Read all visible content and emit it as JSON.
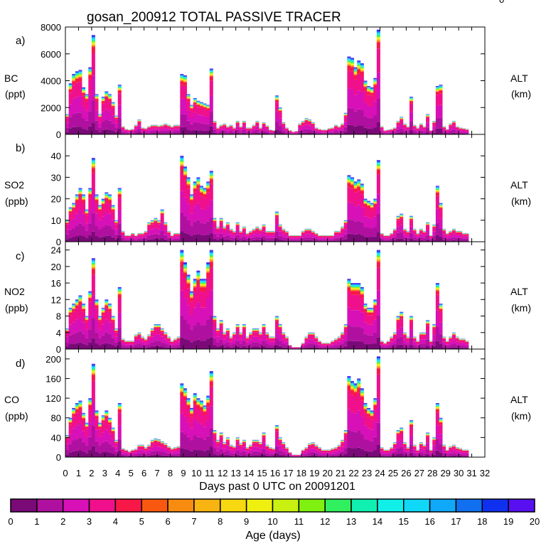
{
  "title": "gosan_200912 TOTAL PASSIVE TRACER",
  "corner_mark": "0",
  "x_axis": {
    "label": "Days past 0 UTC on 20091201",
    "ticks": [
      "0",
      "1",
      "2",
      "3",
      "4",
      "5",
      "6",
      "7",
      "8",
      "9",
      "10",
      "11",
      "12",
      "13",
      "14",
      "15",
      "16",
      "17",
      "18",
      "19",
      "20",
      "21",
      "22",
      "23",
      "24",
      "25",
      "26",
      "27",
      "28",
      "29",
      "30",
      "31",
      "32"
    ],
    "range": [
      0,
      32
    ],
    "data_extent": [
      0,
      31.5
    ]
  },
  "colorbar": {
    "label": "Age (days)",
    "ticks": [
      "0",
      "1",
      "2",
      "3",
      "4",
      "5",
      "6",
      "7",
      "8",
      "9",
      "10",
      "11",
      "12",
      "13",
      "14",
      "15",
      "16",
      "17",
      "18",
      "19",
      "20"
    ],
    "colors": [
      "#7a0a78",
      "#b010a0",
      "#d810b8",
      "#f0108c",
      "#f81848",
      "#f85810",
      "#f88c10",
      "#f8b410",
      "#f8d810",
      "#f0f010",
      "#c8f010",
      "#80f010",
      "#30f060",
      "#10f0b0",
      "#10f0e8",
      "#10d8f8",
      "#10a8f8",
      "#1070f0",
      "#1030f0",
      "#5810f0"
    ]
  },
  "panels": [
    {
      "letter": "a)",
      "species": "BC",
      "unit": "(ppt)",
      "right_label": "ALT",
      "right_unit": "(km)",
      "yticks": [
        "0",
        "2000",
        "4000",
        "6000",
        "8000"
      ],
      "ylim": [
        0,
        8000
      ]
    },
    {
      "letter": "b)",
      "species": "SO2",
      "unit": "(ppb)",
      "right_label": "ALT",
      "right_unit": "(km)",
      "yticks": [
        "0",
        "10",
        "20",
        "30",
        "40"
      ],
      "ylim": [
        0,
        50
      ]
    },
    {
      "letter": "c)",
      "species": "NO2",
      "unit": "(ppb)",
      "right_label": "ALT",
      "right_unit": "(km)",
      "yticks": [
        "0",
        "4",
        "8",
        "12",
        "16",
        "20",
        "24"
      ],
      "ylim": [
        0,
        26
      ]
    },
    {
      "letter": "d)",
      "species": "CO",
      "unit": "(ppb)",
      "right_label": "ALT",
      "right_unit": "(km)",
      "yticks": [
        "0",
        "40",
        "80",
        "120",
        "160",
        "200"
      ],
      "ylim": [
        0,
        220
      ]
    }
  ],
  "chart_data": [
    {
      "type": "area",
      "title": "a) BC (ppt)",
      "xlabel": "Days past 0 UTC on 20091201",
      "ylabel": "BC (ppt)",
      "ylim": [
        0,
        8000
      ],
      "x": [
        0,
        0.25,
        0.5,
        0.75,
        1,
        1.25,
        1.5,
        1.75,
        2,
        2.25,
        2.5,
        2.75,
        3,
        3.25,
        3.5,
        3.75,
        4,
        4.25,
        4.5,
        4.75,
        5,
        5.25,
        5.5,
        5.75,
        6,
        6.25,
        6.5,
        6.75,
        7,
        7.25,
        7.5,
        7.75,
        8,
        8.25,
        8.5,
        8.75,
        9,
        9.25,
        9.5,
        9.75,
        10,
        10.25,
        10.5,
        10.75,
        11,
        11.25,
        11.5,
        11.75,
        12,
        12.25,
        12.5,
        12.75,
        13,
        13.25,
        13.5,
        13.75,
        14,
        14.25,
        14.5,
        14.75,
        15,
        15.25,
        15.5,
        15.75,
        16,
        16.25,
        16.5,
        16.75,
        17,
        17.25,
        17.5,
        17.75,
        18,
        18.25,
        18.5,
        18.75,
        19,
        19.25,
        19.5,
        19.75,
        20,
        20.25,
        20.5,
        20.75,
        21,
        21.25,
        21.5,
        21.75,
        22,
        22.25,
        22.5,
        22.75,
        23,
        23.25,
        23.5,
        23.75,
        24,
        24.25,
        24.5,
        24.75,
        25,
        25.25,
        25.5,
        25.75,
        26,
        26.25,
        26.5,
        26.75,
        27,
        27.25,
        27.5,
        27.75,
        28,
        28.25,
        28.5,
        28.75,
        29,
        29.25,
        29.5,
        29.75,
        30,
        30.25,
        30.5,
        30.75,
        31,
        31.25,
        31.5
      ],
      "total": [
        1500,
        3800,
        4500,
        4700,
        4800,
        3500,
        3000,
        5000,
        7400,
        3000,
        1500,
        2800,
        3200,
        3000,
        2400,
        1400,
        3700,
        600,
        400,
        350,
        400,
        700,
        1100,
        500,
        450,
        600,
        700,
        700,
        650,
        700,
        800,
        700,
        600,
        700,
        700,
        4500,
        4400,
        3000,
        2200,
        2700,
        2500,
        2400,
        2300,
        2200,
        4900,
        1000,
        500,
        700,
        800,
        600,
        700,
        500,
        1000,
        600,
        1000,
        500,
        500,
        700,
        1000,
        500,
        900,
        650,
        350,
        300,
        2900,
        2000,
        900,
        500,
        300,
        200,
        250,
        800,
        1000,
        1200,
        1100,
        900,
        500,
        400,
        350,
        350,
        450,
        500,
        700,
        600,
        800,
        1600,
        5800,
        5700,
        5000,
        5500,
        5300,
        4000,
        3600,
        3500,
        4200,
        7800,
        600,
        300,
        350,
        400,
        500,
        1000,
        1300,
        800,
        600,
        2800,
        700,
        500,
        800,
        600,
        1500,
        300,
        1000,
        3600,
        3700,
        600,
        400,
        800,
        1000,
        600,
        500,
        450,
        400
      ],
      "aged_fraction_top": 0.15
    },
    {
      "type": "area",
      "title": "b) SO2 (ppb)",
      "xlabel": "Days past 0 UTC on 20091201",
      "ylabel": "SO2 (ppb)",
      "ylim": [
        0,
        50
      ],
      "x": [
        0,
        0.25,
        0.5,
        0.75,
        1,
        1.25,
        1.5,
        1.75,
        2,
        2.25,
        2.5,
        2.75,
        3,
        3.25,
        3.5,
        3.75,
        4,
        4.25,
        4.5,
        4.75,
        5,
        5.25,
        5.5,
        5.75,
        6,
        6.25,
        6.5,
        6.75,
        7,
        7.25,
        7.5,
        7.75,
        8,
        8.25,
        8.5,
        8.75,
        9,
        9.25,
        9.5,
        9.75,
        10,
        10.25,
        10.5,
        10.75,
        11,
        11.25,
        11.5,
        11.75,
        12,
        12.25,
        12.5,
        12.75,
        13,
        13.25,
        13.5,
        13.75,
        14,
        14.25,
        14.5,
        14.75,
        15,
        15.25,
        15.5,
        15.75,
        16,
        16.25,
        16.5,
        16.75,
        17,
        17.25,
        17.5,
        17.75,
        18,
        18.25,
        18.5,
        18.75,
        19,
        19.25,
        19.5,
        19.75,
        20,
        20.25,
        20.5,
        20.75,
        21,
        21.25,
        21.5,
        21.75,
        22,
        22.25,
        22.5,
        22.75,
        23,
        23.25,
        23.5,
        23.75,
        24,
        24.25,
        24.5,
        24.75,
        25,
        25.25,
        25.5,
        25.75,
        26,
        26.25,
        26.5,
        26.75,
        27,
        27.25,
        27.5,
        27.75,
        28,
        28.25,
        28.5,
        28.75,
        29,
        29.25,
        29.5,
        29.75,
        30,
        30.25,
        30.5,
        30.75,
        31,
        31.25,
        31.5
      ],
      "total": [
        10,
        16,
        18,
        22,
        25,
        22,
        15,
        25,
        39,
        22,
        17,
        20,
        23,
        22,
        17,
        10,
        25,
        5,
        3,
        3,
        4,
        3,
        4,
        4,
        5,
        9,
        10,
        11,
        10,
        15,
        9,
        5,
        3,
        4,
        4,
        40,
        35,
        30,
        22,
        28,
        30,
        26,
        25,
        28,
        33,
        11,
        7,
        11,
        7,
        9,
        6,
        5,
        9,
        5,
        7,
        4,
        5,
        6,
        7,
        6,
        8,
        5,
        5,
        5,
        14,
        8,
        6,
        5,
        3,
        3,
        3,
        3,
        5,
        6,
        6,
        5,
        4,
        3,
        3,
        3,
        3,
        3,
        5,
        5,
        7,
        10,
        31,
        30,
        28,
        29,
        27,
        20,
        19,
        18,
        20,
        38,
        4,
        3,
        3,
        4,
        6,
        12,
        13,
        6,
        5,
        12,
        6,
        4,
        6,
        5,
        9,
        3,
        8,
        26,
        18,
        6,
        4,
        5,
        6,
        5,
        5,
        4,
        4
      ],
      "aged_fraction_top": 0.2
    },
    {
      "type": "area",
      "title": "c) NO2 (ppb)",
      "xlabel": "Days past 0 UTC on 20091201",
      "ylabel": "NO2 (ppb)",
      "ylim": [
        0,
        26
      ],
      "x": [
        0,
        0.25,
        0.5,
        0.75,
        1,
        1.25,
        1.5,
        1.75,
        2,
        2.25,
        2.5,
        2.75,
        3,
        3.25,
        3.5,
        3.75,
        4,
        4.25,
        4.5,
        4.75,
        5,
        5.25,
        5.5,
        5.75,
        6,
        6.25,
        6.5,
        6.75,
        7,
        7.25,
        7.5,
        7.75,
        8,
        8.25,
        8.5,
        8.75,
        9,
        9.25,
        9.5,
        9.75,
        10,
        10.25,
        10.5,
        10.75,
        11,
        11.25,
        11.5,
        11.75,
        12,
        12.25,
        12.5,
        12.75,
        13,
        13.25,
        13.5,
        13.75,
        14,
        14.25,
        14.5,
        14.75,
        15,
        15.25,
        15.5,
        15.75,
        16,
        16.25,
        16.5,
        16.75,
        17,
        17.25,
        17.5,
        17.75,
        18,
        18.25,
        18.5,
        18.75,
        19,
        19.25,
        19.5,
        19.75,
        20,
        20.25,
        20.5,
        20.75,
        21,
        21.25,
        21.5,
        21.75,
        22,
        22.25,
        22.5,
        22.75,
        23,
        23.25,
        23.5,
        23.75,
        24,
        24.25,
        24.5,
        24.75,
        25,
        25.25,
        25.5,
        25.75,
        26,
        26.25,
        26.5,
        26.75,
        27,
        27.25,
        27.5,
        27.75,
        28,
        28.25,
        28.5,
        28.75,
        29,
        29.25,
        29.5,
        29.75,
        30,
        30.25,
        30.5,
        30.75,
        31,
        31.25,
        31.5
      ],
      "total": [
        5,
        10,
        11,
        12,
        13,
        11,
        8,
        14,
        22,
        12,
        8,
        10,
        12,
        11,
        8,
        5,
        15,
        2.5,
        2,
        2,
        2,
        3.5,
        4,
        3,
        2.5,
        3.5,
        5,
        6,
        6,
        5,
        4,
        3,
        2,
        2.5,
        3,
        24,
        21,
        18,
        14,
        17,
        19,
        17,
        17,
        21,
        24,
        8,
        5,
        7,
        4,
        5,
        3,
        4,
        6,
        4,
        6,
        3,
        4,
        5,
        5,
        4,
        6,
        4,
        3,
        3,
        8,
        6,
        4,
        3,
        1,
        0.5,
        0.5,
        0.5,
        1.5,
        3,
        4,
        4,
        3,
        2,
        1.5,
        1.5,
        1.5,
        2,
        2.5,
        3,
        4,
        6,
        17,
        16,
        16,
        16,
        15,
        11,
        10,
        10,
        12,
        24,
        2,
        1.5,
        2,
        3,
        4,
        8,
        9,
        4,
        3,
        8,
        3,
        2,
        4,
        4,
        7,
        2,
        6,
        16,
        11,
        3,
        2,
        3,
        4,
        3,
        2.5,
        2.5,
        2
      ],
      "aged_fraction_top": 0.25
    },
    {
      "type": "area",
      "title": "d) CO (ppb)",
      "xlabel": "Days past 0 UTC on 20091201",
      "ylabel": "CO (ppb)",
      "ylim": [
        0,
        220
      ],
      "x": [
        0,
        0.25,
        0.5,
        0.75,
        1,
        1.25,
        1.5,
        1.75,
        2,
        2.25,
        2.5,
        2.75,
        3,
        3.25,
        3.5,
        3.75,
        4,
        4.25,
        4.5,
        4.75,
        5,
        5.25,
        5.5,
        5.75,
        6,
        6.25,
        6.5,
        6.75,
        7,
        7.25,
        7.5,
        7.75,
        8,
        8.25,
        8.5,
        8.75,
        9,
        9.25,
        9.5,
        9.75,
        10,
        10.25,
        10.5,
        10.75,
        11,
        11.25,
        11.5,
        11.75,
        12,
        12.25,
        12.5,
        12.75,
        13,
        13.25,
        13.5,
        13.75,
        14,
        14.25,
        14.5,
        14.75,
        15,
        15.25,
        15.5,
        15.75,
        16,
        16.25,
        16.5,
        16.75,
        17,
        17.25,
        17.5,
        17.75,
        18,
        18.25,
        18.5,
        18.75,
        19,
        19.25,
        19.5,
        19.75,
        20,
        20.25,
        20.5,
        20.75,
        21,
        21.25,
        21.5,
        21.75,
        22,
        22.25,
        22.5,
        22.75,
        23,
        23.25,
        23.5,
        23.75,
        24,
        24.25,
        24.5,
        24.75,
        25,
        25.25,
        25.5,
        25.75,
        26,
        26.25,
        26.5,
        26.75,
        27,
        27.25,
        27.5,
        27.75,
        28,
        28.25,
        28.5,
        28.75,
        29,
        29.25,
        29.5,
        29.75,
        30,
        30.25,
        30.5,
        30.75,
        31,
        31.25,
        31.5
      ],
      "total": [
        45,
        80,
        100,
        110,
        115,
        90,
        70,
        120,
        190,
        95,
        70,
        85,
        95,
        80,
        60,
        35,
        110,
        18,
        15,
        12,
        15,
        17,
        25,
        25,
        20,
        25,
        35,
        38,
        36,
        32,
        28,
        22,
        18,
        20,
        22,
        150,
        140,
        120,
        100,
        130,
        120,
        115,
        105,
        125,
        175,
        55,
        35,
        50,
        30,
        40,
        25,
        22,
        40,
        28,
        35,
        20,
        25,
        35,
        35,
        30,
        50,
        25,
        20,
        18,
        65,
        40,
        30,
        20,
        10,
        5,
        5,
        5,
        15,
        20,
        28,
        30,
        25,
        20,
        15,
        15,
        15,
        18,
        20,
        25,
        35,
        55,
        165,
        155,
        150,
        160,
        140,
        110,
        100,
        95,
        120,
        205,
        20,
        15,
        15,
        20,
        30,
        55,
        60,
        30,
        20,
        75,
        25,
        15,
        30,
        25,
        50,
        15,
        40,
        110,
        80,
        25,
        15,
        22,
        25,
        20,
        18,
        15,
        15
      ],
      "aged_fraction_top": 0.22
    }
  ]
}
